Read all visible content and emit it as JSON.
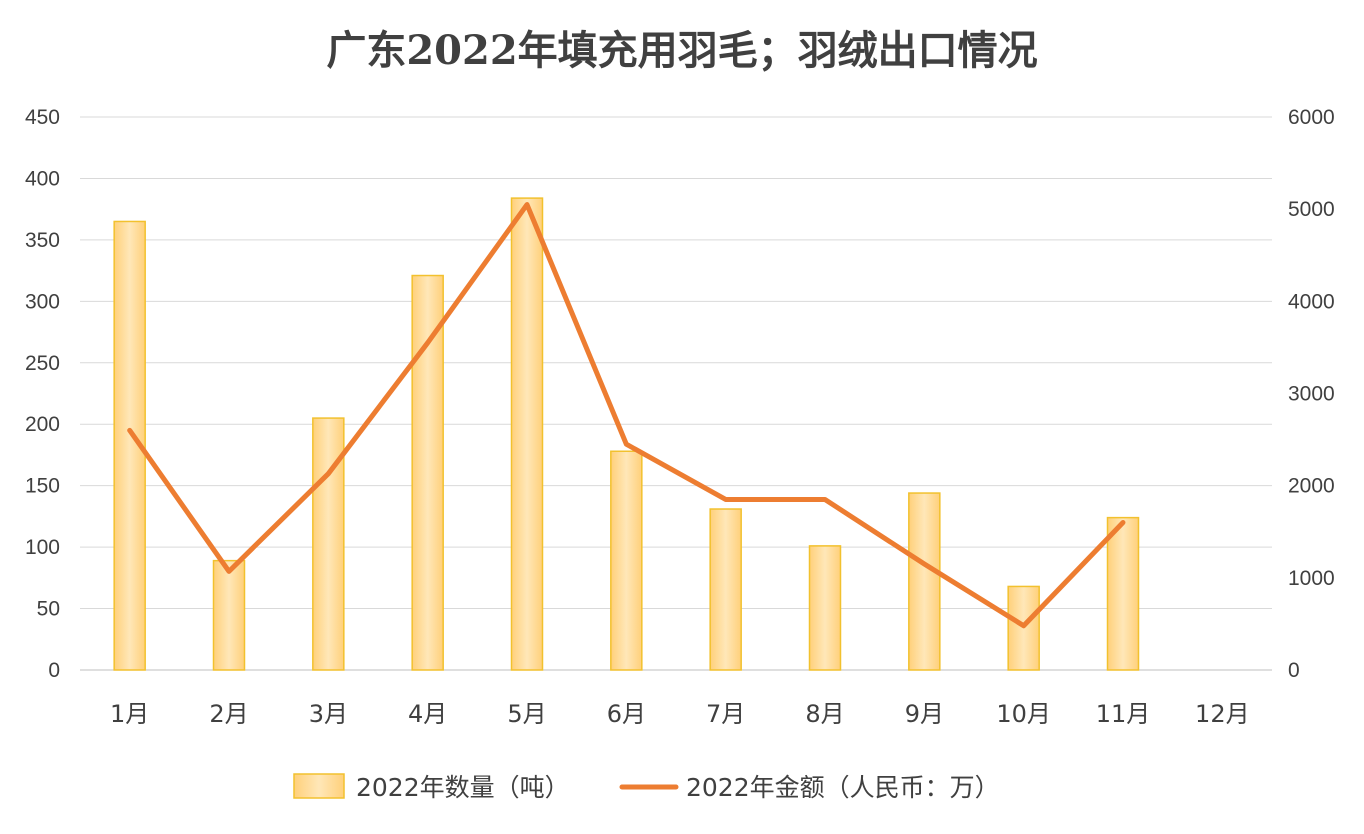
{
  "chart_data": {
    "type": "bar+line",
    "title": "广东2022年填充用羽毛；羽绒出口情况",
    "categories": [
      "1月",
      "2月",
      "3月",
      "4月",
      "5月",
      "6月",
      "7月",
      "8月",
      "9月",
      "10月",
      "11月",
      "12月"
    ],
    "series": [
      {
        "name": "2022年数量（吨）",
        "type": "bar",
        "axis": "left",
        "color": "#FFD98A",
        "values": [
          365,
          89,
          205,
          321,
          384,
          178,
          131,
          101,
          144,
          68,
          124,
          null
        ]
      },
      {
        "name": "2022年金额（人民币：万）",
        "type": "line",
        "axis": "right",
        "color": "#ED7D31",
        "values": [
          2600,
          1070,
          2130,
          3550,
          5050,
          2450,
          1850,
          1850,
          1150,
          480,
          1600,
          null
        ]
      }
    ],
    "y_left": {
      "min": 0,
      "max": 450,
      "step": 50
    },
    "y_right": {
      "min": 0,
      "max": 6000,
      "step": 1000
    },
    "grid": true,
    "legend": "bottom"
  }
}
